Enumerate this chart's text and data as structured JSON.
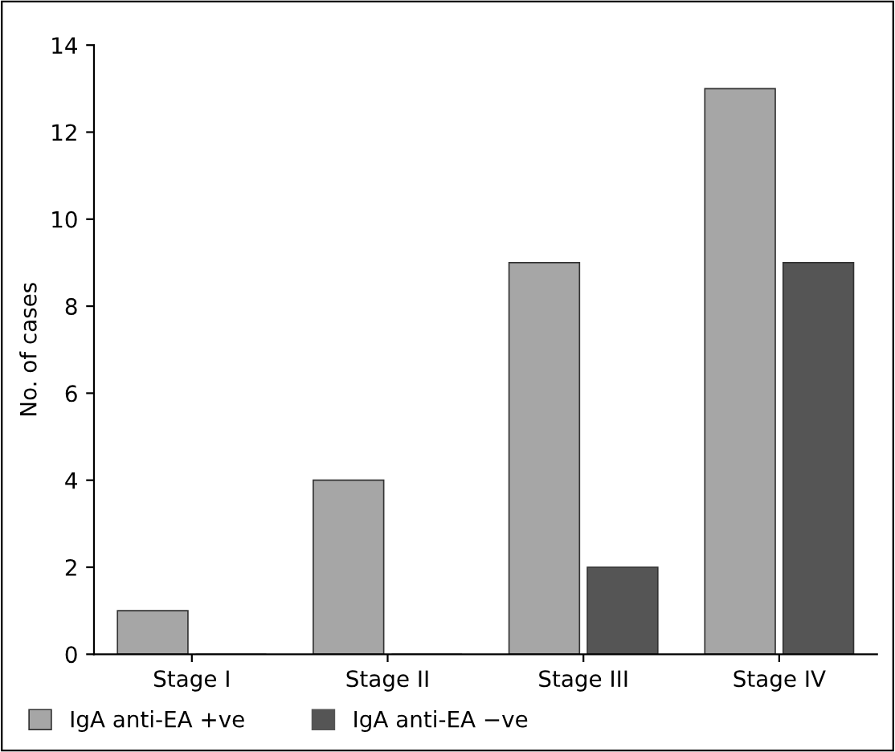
{
  "chart_data": {
    "type": "bar",
    "ylabel": "No. of cases",
    "categories": [
      "Stage I",
      "Stage II",
      "Stage III",
      "Stage IV"
    ],
    "series": [
      {
        "name": "IgA anti-EA +ve",
        "color": "#a6a6a6",
        "values": [
          1,
          4,
          9,
          13
        ]
      },
      {
        "name": "IgA anti-EA −ve",
        "color": "#555555",
        "values": [
          0,
          0,
          2,
          9
        ]
      }
    ],
    "ylim": [
      0,
      14
    ],
    "yticks": [
      0,
      2,
      4,
      6,
      8,
      10,
      12,
      14
    ],
    "grid": false,
    "legend": "bottom"
  }
}
